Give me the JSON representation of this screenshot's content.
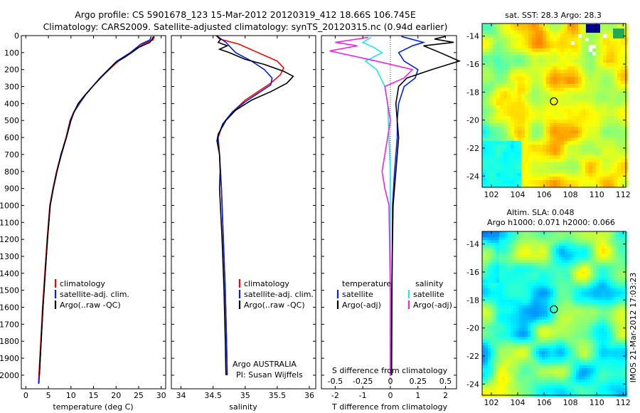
{
  "title": {
    "line1": "Argo profile: CS 5901678_123 15-Mar-2012 20120319_412 18.66S 106.745E",
    "line2": "Climatology: CARS2009. Satellite-adjusted climatology: synTS_20120315.nc (0.94d earlier)"
  },
  "colors": {
    "climatology": "#ff0000",
    "satellite": "#0022dd",
    "argo": "#000000",
    "salinity_satellite": "#22e6e6",
    "salinity_argo": "#ee22ee"
  },
  "chart_data": [
    {
      "type": "line",
      "name": "temperature-profile",
      "xlabel": "temperature (deg C)",
      "ylabel": "",
      "xlim": [
        -1,
        31
      ],
      "ylim": [
        2080,
        0
      ],
      "xticks": [
        "0",
        "5",
        "10",
        "15",
        "20",
        "25",
        "30"
      ],
      "yticks": [
        "0",
        "100",
        "200",
        "300",
        "400",
        "500",
        "600",
        "700",
        "800",
        "900",
        "1000",
        "1100",
        "1200",
        "1300",
        "1400",
        "1500",
        "1600",
        "1700",
        "1800",
        "1900",
        "2000"
      ],
      "legend": [
        "climatology",
        "satellite-adj. clim.",
        "Argo(..raw -QC)"
      ],
      "series": [
        {
          "name": "climatology",
          "color": "#ff0000",
          "points": [
            [
              28.5,
              5
            ],
            [
              28.2,
              25
            ],
            [
              26,
              50
            ],
            [
              23.5,
              100
            ],
            [
              20.5,
              150
            ],
            [
              18.5,
              200
            ],
            [
              16.5,
              250
            ],
            [
              14.8,
              300
            ],
            [
              13.2,
              350
            ],
            [
              11.8,
              400
            ],
            [
              10.6,
              450
            ],
            [
              9.8,
              500
            ],
            [
              8.9,
              600
            ],
            [
              7.8,
              700
            ],
            [
              6.8,
              800
            ],
            [
              6,
              900
            ],
            [
              5.3,
              1000
            ],
            [
              4.7,
              1200
            ],
            [
              4.2,
              1400
            ],
            [
              3.7,
              1600
            ],
            [
              3.3,
              1800
            ],
            [
              2.9,
              2000
            ],
            [
              2.8,
              2050
            ]
          ]
        },
        {
          "name": "satellite-adj. clim.",
          "color": "#0022dd",
          "points": [
            [
              27.8,
              5
            ],
            [
              27.5,
              25
            ],
            [
              25.5,
              50
            ],
            [
              23.2,
              100
            ],
            [
              20.2,
              150
            ],
            [
              18.3,
              200
            ],
            [
              16.4,
              250
            ],
            [
              14.8,
              300
            ],
            [
              13.2,
              350
            ],
            [
              11.9,
              400
            ],
            [
              10.7,
              450
            ],
            [
              9.9,
              500
            ],
            [
              9,
              600
            ],
            [
              7.9,
              700
            ],
            [
              6.9,
              800
            ],
            [
              6.1,
              900
            ],
            [
              5.4,
              1000
            ],
            [
              4.8,
              1200
            ],
            [
              4.3,
              1400
            ],
            [
              3.8,
              1600
            ],
            [
              3.4,
              1800
            ],
            [
              3,
              2000
            ],
            [
              2.9,
              2050
            ]
          ]
        },
        {
          "name": "Argo(..raw -QC)",
          "color": "#000000",
          "points": [
            [
              28.3,
              5
            ],
            [
              28,
              20
            ],
            [
              27.5,
              40
            ],
            [
              25,
              70
            ],
            [
              21.8,
              130
            ],
            [
              19.8,
              160
            ],
            [
              18,
              210
            ],
            [
              16.2,
              260
            ],
            [
              14.8,
              300
            ],
            [
              13.1,
              350
            ],
            [
              11.6,
              400
            ],
            [
              10.7,
              450
            ],
            [
              10,
              500
            ],
            [
              9,
              600
            ],
            [
              7.8,
              700
            ],
            [
              6.9,
              800
            ],
            [
              6.1,
              900
            ],
            [
              5.4,
              1000
            ],
            [
              4.8,
              1200
            ],
            [
              4.3,
              1400
            ],
            [
              3.8,
              1600
            ],
            [
              3.4,
              1800
            ],
            [
              3,
              2000
            ]
          ]
        }
      ]
    },
    {
      "type": "line",
      "name": "salinity-profile",
      "xlabel": "salinity",
      "xlim": [
        33.85,
        36.1
      ],
      "ylim": [
        2080,
        0
      ],
      "xticks": [
        "34",
        "34.5",
        "35",
        "35.5",
        "36"
      ],
      "legend": [
        "climatology",
        "satellite-adj. clim.",
        "Argo(..raw -QC)"
      ],
      "annotation": [
        "Argo AUSTRALIA",
        "PI: Susan Wijffels"
      ],
      "series": [
        {
          "name": "climatology",
          "color": "#ff0000",
          "points": [
            [
              34.55,
              0
            ],
            [
              34.6,
              20
            ],
            [
              34.9,
              50
            ],
            [
              35.2,
              100
            ],
            [
              35.5,
              150
            ],
            [
              35.6,
              190
            ],
            [
              35.55,
              230
            ],
            [
              35.4,
              280
            ],
            [
              35.2,
              330
            ],
            [
              35,
              380
            ],
            [
              34.8,
              450
            ],
            [
              34.65,
              520
            ],
            [
              34.58,
              600
            ],
            [
              34.6,
              700
            ],
            [
              34.63,
              900
            ],
            [
              34.66,
              1200
            ],
            [
              34.69,
              1500
            ],
            [
              34.71,
              1800
            ],
            [
              34.72,
              2000
            ]
          ]
        },
        {
          "name": "satellite-adj. clim.",
          "color": "#0022dd",
          "points": [
            [
              34.55,
              0
            ],
            [
              34.7,
              40
            ],
            [
              34.85,
              100
            ],
            [
              35.1,
              150
            ],
            [
              35.3,
              200
            ],
            [
              35.42,
              250
            ],
            [
              35.4,
              290
            ],
            [
              35.2,
              340
            ],
            [
              35,
              390
            ],
            [
              34.8,
              450
            ],
            [
              34.65,
              520
            ],
            [
              34.57,
              600
            ],
            [
              34.6,
              700
            ],
            [
              34.63,
              900
            ],
            [
              34.66,
              1200
            ],
            [
              34.69,
              1500
            ],
            [
              34.71,
              1800
            ],
            [
              34.72,
              2000
            ]
          ]
        },
        {
          "name": "Argo(..raw -QC)",
          "color": "#000000",
          "points": [
            [
              34.55,
              0
            ],
            [
              34.62,
              20
            ],
            [
              34.58,
              40
            ],
            [
              34.72,
              60
            ],
            [
              34.6,
              80
            ],
            [
              34.75,
              100
            ],
            [
              35,
              140
            ],
            [
              35.3,
              170
            ],
            [
              35.6,
              210
            ],
            [
              35.75,
              240
            ],
            [
              35.65,
              280
            ],
            [
              35.4,
              330
            ],
            [
              35.1,
              380
            ],
            [
              34.85,
              440
            ],
            [
              34.7,
              500
            ],
            [
              34.58,
              580
            ],
            [
              34.56,
              620
            ],
            [
              34.6,
              700
            ],
            [
              34.61,
              800
            ],
            [
              34.6,
              900
            ],
            [
              34.64,
              1200
            ],
            [
              34.67,
              1500
            ],
            [
              34.69,
              1800
            ],
            [
              34.7,
              2000
            ]
          ]
        }
      ]
    },
    {
      "type": "line",
      "name": "difference-profile",
      "xlabel": "T difference from climatology",
      "xlabel_top": "S difference from climatology",
      "xlim": [
        -2.5,
        2.4
      ],
      "ylim": [
        2080,
        0
      ],
      "xticks": [
        "-2",
        "-1",
        "0",
        "1",
        "2"
      ],
      "xticks_top": [
        "-0.5",
        "-0.25",
        "0",
        "0.25",
        "0.5"
      ],
      "legend_titles": [
        "temperature",
        "salinity"
      ],
      "legend": [
        "satellite",
        "Argo(-adj)",
        "satellite",
        "Argo(-adj)"
      ],
      "series": [
        {
          "name": "temperature satellite",
          "color": "#0022dd",
          "points": [
            [
              0.4,
              5
            ],
            [
              1.2,
              40
            ],
            [
              0.8,
              60
            ],
            [
              0.3,
              100
            ],
            [
              0.5,
              150
            ],
            [
              1,
              200
            ],
            [
              0.9,
              250
            ],
            [
              0.5,
              300
            ],
            [
              0.3,
              400
            ],
            [
              0.25,
              500
            ],
            [
              0.25,
              600
            ],
            [
              0.15,
              800
            ],
            [
              0.08,
              1000
            ],
            [
              0.06,
              1500
            ],
            [
              0.05,
              2000
            ]
          ]
        },
        {
          "name": "temperature Argo(-adj)",
          "color": "#000000",
          "points": [
            [
              2,
              5
            ],
            [
              1.6,
              20
            ],
            [
              2.3,
              40
            ],
            [
              1.2,
              60
            ],
            [
              1.8,
              100
            ],
            [
              2.5,
              150
            ],
            [
              1.5,
              200
            ],
            [
              0.6,
              250
            ],
            [
              0.3,
              300
            ],
            [
              0.2,
              400
            ],
            [
              0.25,
              500
            ],
            [
              0.3,
              600
            ],
            [
              0.2,
              800
            ],
            [
              0.1,
              1000
            ],
            [
              0.05,
              1500
            ],
            [
              0.03,
              2000
            ]
          ]
        },
        {
          "name": "salinity satellite",
          "color": "#22e6e6",
          "points": [
            [
              -0.7,
              10
            ],
            [
              -1,
              40
            ],
            [
              -0.6,
              70
            ],
            [
              -0.3,
              100
            ],
            [
              -0.9,
              150
            ],
            [
              -0.5,
              200
            ],
            [
              -0.2,
              300
            ],
            [
              -0.1,
              400
            ],
            [
              -0.05,
              600
            ],
            [
              0,
              800
            ],
            [
              0,
              1000
            ],
            [
              0,
              1500
            ],
            [
              0,
              2000
            ]
          ]
        },
        {
          "name": "salinity Argo(-adj)",
          "color": "#ee22ee",
          "points": [
            [
              -0.8,
              10
            ],
            [
              -2,
              40
            ],
            [
              -1.2,
              60
            ],
            [
              -2.2,
              90
            ],
            [
              -0.5,
              150
            ],
            [
              0.8,
              200
            ],
            [
              0.5,
              250
            ],
            [
              -0.2,
              300
            ],
            [
              -0.1,
              400
            ],
            [
              0,
              500
            ],
            [
              -0.1,
              600
            ],
            [
              -0.2,
              700
            ],
            [
              -0.3,
              800
            ],
            [
              -0.2,
              900
            ],
            [
              -0.05,
              1000
            ],
            [
              0,
              1500
            ],
            [
              0,
              2000
            ]
          ]
        }
      ]
    },
    {
      "type": "heatmap",
      "name": "sst-map",
      "title": "sat. SST: 28.3 Argo: 28.3",
      "xlim": [
        101.3,
        112.2
      ],
      "ylim": [
        -24.8,
        -13.1
      ],
      "xticks": [
        "102",
        "104",
        "106",
        "108",
        "110",
        "112"
      ],
      "yticks": [
        "-14",
        "-16",
        "-18",
        "-20",
        "-22",
        "-24"
      ],
      "marker": [
        106.745,
        -18.66
      ]
    },
    {
      "type": "heatmap",
      "name": "sla-map",
      "title_line1": "Altim. SLA: 0.048",
      "title_line2": "Argo h1000: 0.071 h2000: 0.066",
      "xlim": [
        101.3,
        112.2
      ],
      "ylim": [
        -24.8,
        -13.1
      ],
      "xticks": [
        "102",
        "104",
        "106",
        "108",
        "110",
        "112"
      ],
      "yticks": [
        "-14",
        "-16",
        "-18",
        "-20",
        "-22",
        "-24"
      ],
      "marker": [
        106.745,
        -18.66
      ]
    }
  ],
  "watermark": "IMOS 21-Mar-2012 17:03:23"
}
